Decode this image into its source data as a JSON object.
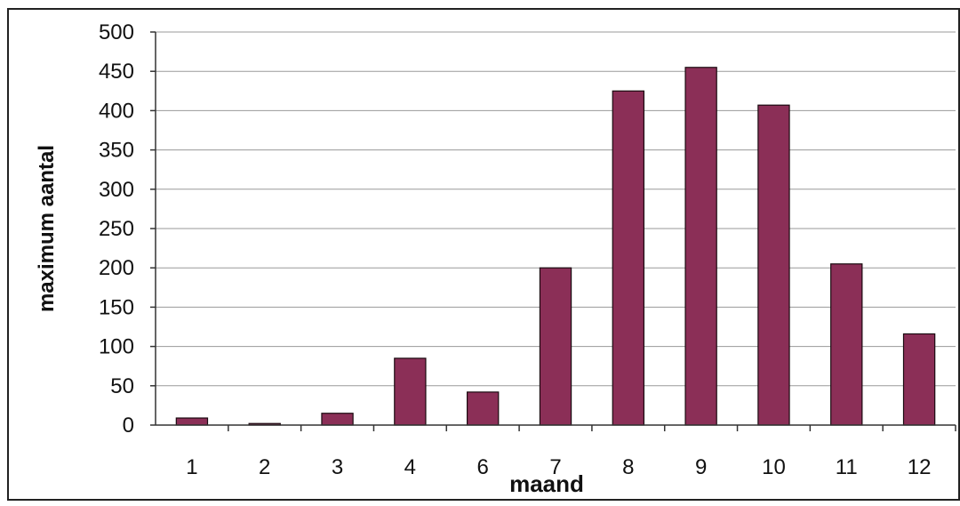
{
  "chart_data": {
    "type": "bar",
    "title": "",
    "xlabel": "maand",
    "ylabel": "maximum aantal",
    "categories": [
      "1",
      "2",
      "3",
      "4",
      "6",
      "7",
      "8",
      "9",
      "10",
      "11",
      "12"
    ],
    "values": [
      9,
      2,
      15,
      85,
      42,
      200,
      425,
      455,
      407,
      205,
      116
    ],
    "ylim": [
      0,
      500
    ],
    "yticks": [
      "0",
      "50",
      "100",
      "150",
      "200",
      "250",
      "300",
      "350",
      "400",
      "450",
      "500"
    ],
    "grid": true,
    "legend": "none",
    "colors": {
      "bar": "#8b2f57",
      "bar_outline": "#1a0a10",
      "grid": "#9a9a9a",
      "axis": "#333333"
    }
  }
}
